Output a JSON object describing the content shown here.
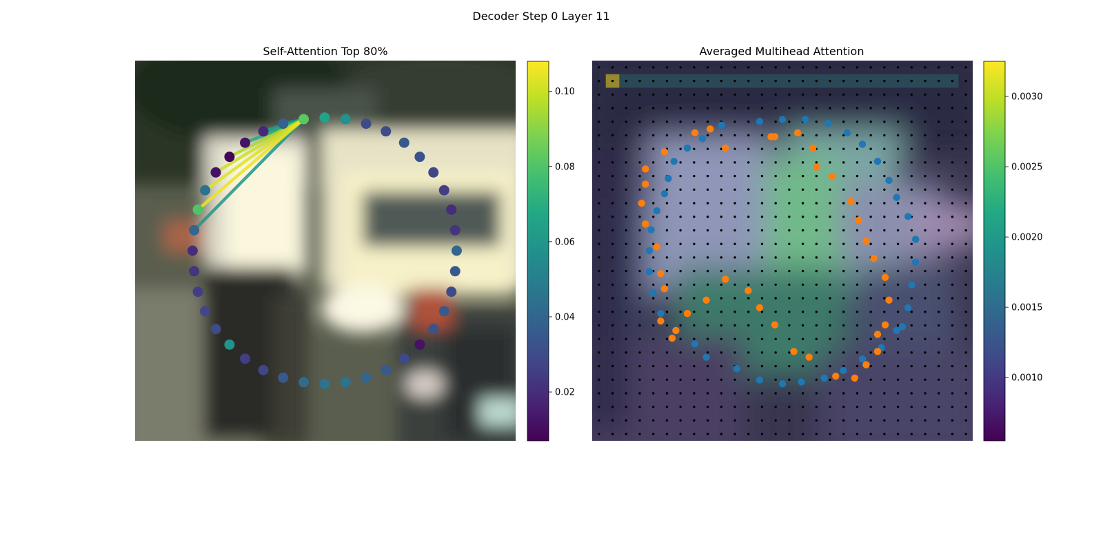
{
  "figure": {
    "suptitle": "Decoder Step 0 Layer 11"
  },
  "chart_data": [
    {
      "type": "scatter",
      "title": "Self-Attention Top 80%",
      "subtype": "polygon vertex attention over background image",
      "background": "blurred street scene with a white truck",
      "x_axis_visible": false,
      "y_axis_visible": false,
      "colormap": "viridis",
      "colorbar": {
        "range": [
          0.007,
          0.108
        ],
        "ticks": [
          0.02,
          0.04,
          0.06,
          0.08,
          0.1
        ],
        "tick_labels": [
          "0.02",
          "0.04",
          "0.06",
          "0.08",
          "0.10"
        ]
      },
      "source_vertex": 0,
      "vertices": [
        {
          "x": 0.443,
          "y": 0.154,
          "v": 0.082
        },
        {
          "x": 0.498,
          "y": 0.15,
          "v": 0.065
        },
        {
          "x": 0.553,
          "y": 0.154,
          "v": 0.058
        },
        {
          "x": 0.607,
          "y": 0.166,
          "v": 0.03
        },
        {
          "x": 0.659,
          "y": 0.186,
          "v": 0.03
        },
        {
          "x": 0.707,
          "y": 0.216,
          "v": 0.035
        },
        {
          "x": 0.748,
          "y": 0.253,
          "v": 0.032
        },
        {
          "x": 0.784,
          "y": 0.294,
          "v": 0.028
        },
        {
          "x": 0.812,
          "y": 0.341,
          "v": 0.025
        },
        {
          "x": 0.831,
          "y": 0.392,
          "v": 0.02
        },
        {
          "x": 0.841,
          "y": 0.446,
          "v": 0.022
        },
        {
          "x": 0.845,
          "y": 0.5,
          "v": 0.04
        },
        {
          "x": 0.841,
          "y": 0.554,
          "v": 0.035
        },
        {
          "x": 0.831,
          "y": 0.608,
          "v": 0.03
        },
        {
          "x": 0.812,
          "y": 0.659,
          "v": 0.035
        },
        {
          "x": 0.784,
          "y": 0.706,
          "v": 0.033
        },
        {
          "x": 0.748,
          "y": 0.747,
          "v": 0.012
        },
        {
          "x": 0.707,
          "y": 0.784,
          "v": 0.03
        },
        {
          "x": 0.659,
          "y": 0.814,
          "v": 0.035
        },
        {
          "x": 0.607,
          "y": 0.834,
          "v": 0.04
        },
        {
          "x": 0.553,
          "y": 0.846,
          "v": 0.045
        },
        {
          "x": 0.498,
          "y": 0.85,
          "v": 0.045
        },
        {
          "x": 0.443,
          "y": 0.846,
          "v": 0.042
        },
        {
          "x": 0.389,
          "y": 0.834,
          "v": 0.035
        },
        {
          "x": 0.337,
          "y": 0.814,
          "v": 0.028
        },
        {
          "x": 0.289,
          "y": 0.784,
          "v": 0.025
        },
        {
          "x": 0.248,
          "y": 0.747,
          "v": 0.058
        },
        {
          "x": 0.212,
          "y": 0.706,
          "v": 0.03
        },
        {
          "x": 0.184,
          "y": 0.659,
          "v": 0.028
        },
        {
          "x": 0.165,
          "y": 0.608,
          "v": 0.025
        },
        {
          "x": 0.155,
          "y": 0.554,
          "v": 0.022
        },
        {
          "x": 0.151,
          "y": 0.5,
          "v": 0.02
        },
        {
          "x": 0.155,
          "y": 0.446,
          "v": 0.04
        },
        {
          "x": 0.165,
          "y": 0.392,
          "v": 0.08
        },
        {
          "x": 0.184,
          "y": 0.341,
          "v": 0.045
        },
        {
          "x": 0.212,
          "y": 0.294,
          "v": 0.012
        },
        {
          "x": 0.248,
          "y": 0.253,
          "v": 0.008
        },
        {
          "x": 0.289,
          "y": 0.216,
          "v": 0.012
        },
        {
          "x": 0.337,
          "y": 0.186,
          "v": 0.018
        },
        {
          "x": 0.389,
          "y": 0.166,
          "v": 0.038
        }
      ],
      "edges": [
        {
          "to": 33,
          "w": 0.105
        },
        {
          "to": 34,
          "w": 0.103
        },
        {
          "to": 35,
          "w": 0.1
        },
        {
          "to": 36,
          "w": 0.095
        },
        {
          "to": 37,
          "w": 0.07
        },
        {
          "to": 38,
          "w": 0.065
        },
        {
          "to": 32,
          "w": 0.06
        },
        {
          "to": 39,
          "w": 0.05
        }
      ]
    },
    {
      "type": "heatmap",
      "title": "Averaged Multihead Attention",
      "x_axis_visible": false,
      "y_axis_visible": false,
      "colormap": "viridis",
      "grid_size": 28,
      "colorbar": {
        "range": [
          0.00055,
          0.00325
        ],
        "ticks": [
          0.001,
          0.0015,
          0.002,
          0.0025,
          0.003
        ],
        "tick_labels": [
          "0.0010",
          "0.0015",
          "0.0020",
          "0.0025",
          "0.0030"
        ]
      },
      "series": [
        {
          "color": "#1f77b4",
          "points": [
            [
              0.34,
              0.17
            ],
            [
              0.44,
              0.16
            ],
            [
              0.5,
              0.155
            ],
            [
              0.56,
              0.155
            ],
            [
              0.62,
              0.165
            ],
            [
              0.67,
              0.19
            ],
            [
              0.71,
              0.22
            ],
            [
              0.75,
              0.265
            ],
            [
              0.78,
              0.315
            ],
            [
              0.8,
              0.36
            ],
            [
              0.83,
              0.41
            ],
            [
              0.85,
              0.47
            ],
            [
              0.85,
              0.53
            ],
            [
              0.84,
              0.59
            ],
            [
              0.83,
              0.65
            ],
            [
              0.815,
              0.7
            ],
            [
              0.8,
              0.71
            ],
            [
              0.76,
              0.755
            ],
            [
              0.71,
              0.785
            ],
            [
              0.66,
              0.815
            ],
            [
              0.61,
              0.835
            ],
            [
              0.55,
              0.845
            ],
            [
              0.5,
              0.85
            ],
            [
              0.44,
              0.84
            ],
            [
              0.38,
              0.81
            ],
            [
              0.3,
              0.78
            ],
            [
              0.27,
              0.745
            ],
            [
              0.22,
              0.71
            ],
            [
              0.18,
              0.665
            ],
            [
              0.16,
              0.61
            ],
            [
              0.15,
              0.555
            ],
            [
              0.15,
              0.5
            ],
            [
              0.155,
              0.445
            ],
            [
              0.17,
              0.395
            ],
            [
              0.19,
              0.35
            ],
            [
              0.2,
              0.31
            ],
            [
              0.215,
              0.265
            ],
            [
              0.25,
              0.23
            ],
            [
              0.29,
              0.205
            ]
          ]
        },
        {
          "color": "#ff7f0e",
          "points": [
            [
              0.47,
              0.2
            ],
            [
              0.48,
              0.2
            ],
            [
              0.54,
              0.19
            ],
            [
              0.58,
              0.23
            ],
            [
              0.59,
              0.28
            ],
            [
              0.63,
              0.305
            ],
            [
              0.68,
              0.37
            ],
            [
              0.7,
              0.42
            ],
            [
              0.72,
              0.475
            ],
            [
              0.74,
              0.52
            ],
            [
              0.77,
              0.57
            ],
            [
              0.78,
              0.63
            ],
            [
              0.77,
              0.695
            ],
            [
              0.75,
              0.72
            ],
            [
              0.75,
              0.765
            ],
            [
              0.72,
              0.8
            ],
            [
              0.69,
              0.835
            ],
            [
              0.64,
              0.83
            ],
            [
              0.57,
              0.78
            ],
            [
              0.53,
              0.765
            ],
            [
              0.48,
              0.695
            ],
            [
              0.44,
              0.65
            ],
            [
              0.41,
              0.605
            ],
            [
              0.35,
              0.575
            ],
            [
              0.3,
              0.63
            ],
            [
              0.25,
              0.665
            ],
            [
              0.22,
              0.71
            ],
            [
              0.21,
              0.73
            ],
            [
              0.18,
              0.685
            ],
            [
              0.19,
              0.6
            ],
            [
              0.18,
              0.56
            ],
            [
              0.17,
              0.49
            ],
            [
              0.14,
              0.43
            ],
            [
              0.13,
              0.375
            ],
            [
              0.14,
              0.325
            ],
            [
              0.14,
              0.285
            ],
            [
              0.19,
              0.24
            ],
            [
              0.27,
              0.19
            ],
            [
              0.31,
              0.18
            ],
            [
              0.35,
              0.23
            ]
          ]
        }
      ]
    }
  ]
}
